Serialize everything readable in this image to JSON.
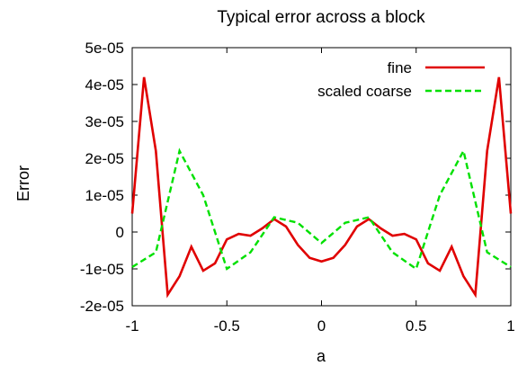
{
  "chart_data": {
    "type": "line",
    "title": "Typical error across a block",
    "xlabel": "a",
    "ylabel": "Error",
    "xlim": [
      -1,
      1
    ],
    "ylim": [
      -2e-05,
      5e-05
    ],
    "xticks": [
      "-1",
      "-0.5",
      "0",
      "0.5",
      "1"
    ],
    "yticks": [
      "-2e-05",
      "-1e-05",
      "0",
      "1e-05",
      "2e-05",
      "3e-05",
      "4e-05",
      "5e-05"
    ],
    "grid": false,
    "legend_position": "top-right",
    "series": [
      {
        "name": "fine",
        "color": "#e00000",
        "dash": "solid",
        "x": [
          -1.0,
          -0.9375,
          -0.875,
          -0.8125,
          -0.75,
          -0.6875,
          -0.625,
          -0.5625,
          -0.5,
          -0.4375,
          -0.375,
          -0.3125,
          -0.25,
          -0.1875,
          -0.125,
          -0.0625,
          0.0,
          0.0625,
          0.125,
          0.1875,
          0.25,
          0.3125,
          0.375,
          0.4375,
          0.5,
          0.5625,
          0.625,
          0.6875,
          0.75,
          0.8125,
          0.875,
          0.9375,
          1.0
        ],
        "y": [
          5e-06,
          4.2e-05,
          2.2e-05,
          -1.7e-05,
          -1.2e-05,
          -4e-06,
          -1.05e-05,
          -8.5e-06,
          -2e-06,
          -5e-07,
          -1e-06,
          1e-06,
          3.5e-06,
          1.5e-06,
          -3.5e-06,
          -7e-06,
          -8e-06,
          -7e-06,
          -3.5e-06,
          1.5e-06,
          3.5e-06,
          1e-06,
          -1e-06,
          -5e-07,
          -2e-06,
          -8.5e-06,
          -1.05e-05,
          -4e-06,
          -1.2e-05,
          -1.7e-05,
          2.2e-05,
          4.2e-05,
          5e-06
        ]
      },
      {
        "name": "scaled coarse",
        "color": "#00e000",
        "dash": "dashed",
        "x": [
          -1.0,
          -0.875,
          -0.75,
          -0.625,
          -0.5,
          -0.375,
          -0.25,
          -0.125,
          0.0,
          0.125,
          0.25,
          0.375,
          0.5,
          0.625,
          0.75,
          0.875,
          1.0
        ],
        "y": [
          -9.5e-06,
          -5.5e-06,
          2.2e-05,
          1e-05,
          -1e-05,
          -5.5e-06,
          4e-06,
          2.5e-06,
          -3e-06,
          2.5e-06,
          4e-06,
          -5.5e-06,
          -1e-05,
          1e-05,
          2.2e-05,
          -5.5e-06,
          -9.5e-06
        ]
      }
    ]
  }
}
